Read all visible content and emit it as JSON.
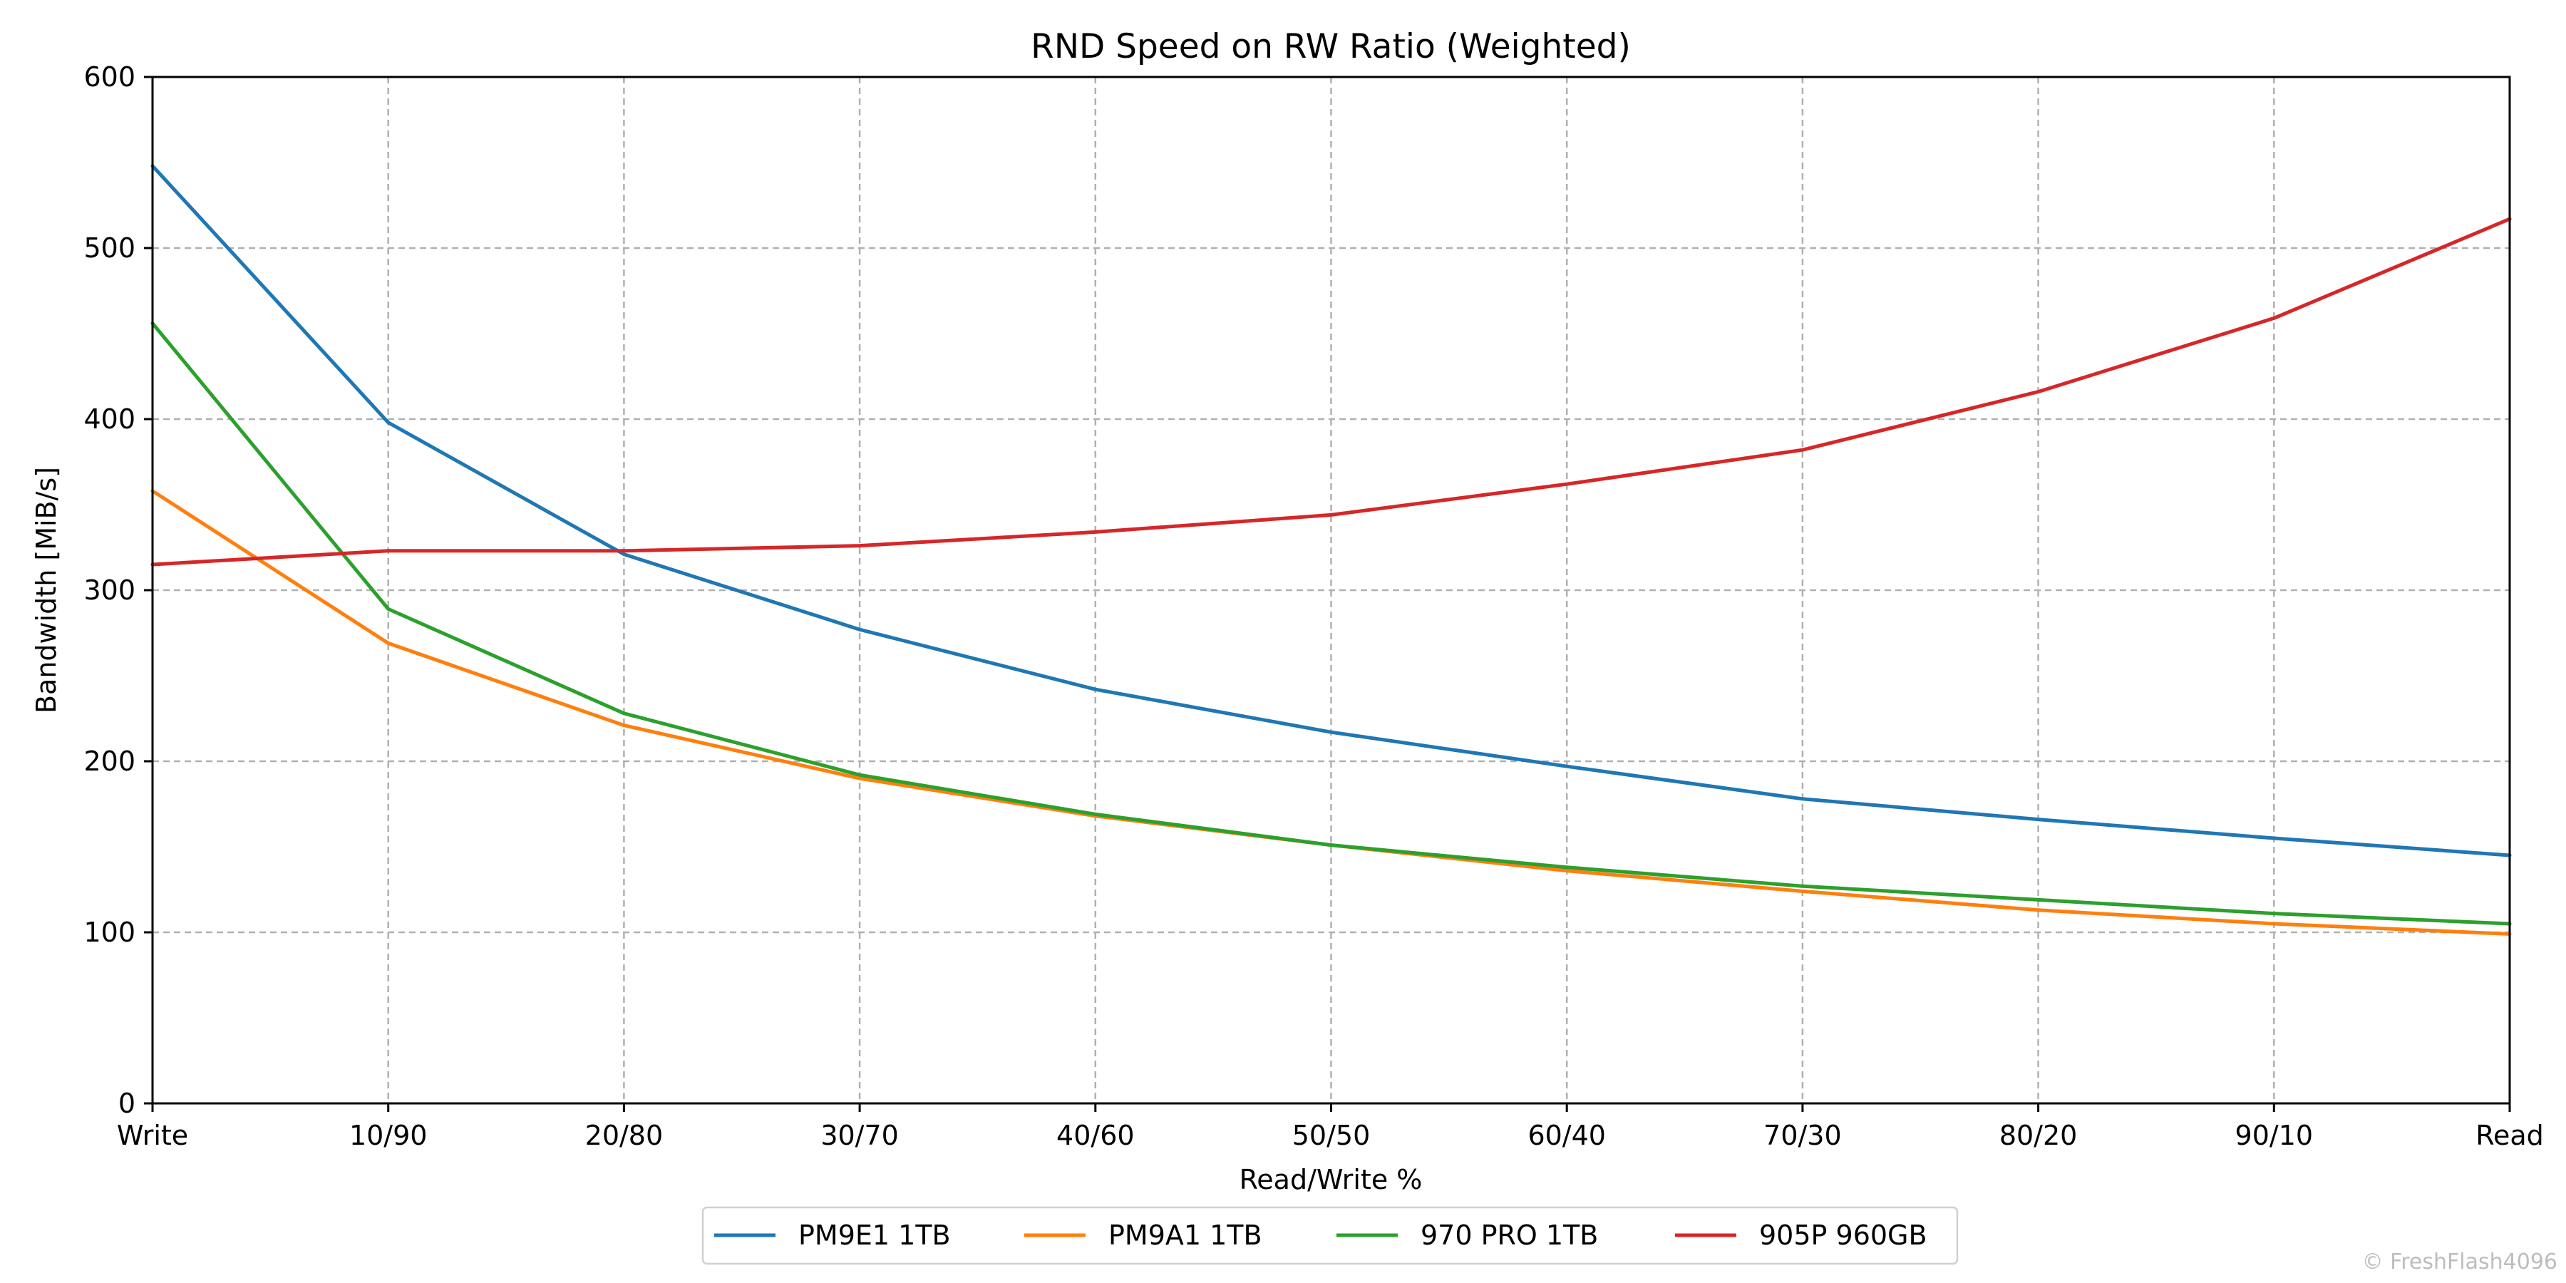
{
  "chart_data": {
    "type": "line",
    "title": "RND Speed on RW Ratio (Weighted)",
    "xlabel": "Read/Write %",
    "ylabel": "Bandwidth [MiB/s]",
    "categories": [
      "Write",
      "10/90",
      "20/80",
      "30/70",
      "40/60",
      "50/50",
      "60/40",
      "70/30",
      "80/20",
      "90/10",
      "Read"
    ],
    "ylim": [
      0,
      600
    ],
    "yticks": [
      0,
      100,
      200,
      300,
      400,
      500,
      600
    ],
    "grid": true,
    "legend_position": "bottom-center",
    "series": [
      {
        "name": "PM9E1 1TB",
        "color": "#1f77b4",
        "values": [
          548,
          398,
          321,
          277,
          242,
          217,
          197,
          178,
          166,
          155,
          145
        ]
      },
      {
        "name": "PM9A1 1TB",
        "color": "#ff7f0e",
        "values": [
          358,
          269,
          221,
          190,
          168,
          151,
          136,
          124,
          113,
          105,
          99
        ]
      },
      {
        "name": "970 PRO 1TB",
        "color": "#2ca02c",
        "values": [
          456,
          289,
          228,
          192,
          169,
          151,
          138,
          127,
          119,
          111,
          105
        ]
      },
      {
        "name": "905P 960GB",
        "color": "#d62728",
        "values": [
          315,
          323,
          323,
          326,
          334,
          344,
          362,
          382,
          416,
          459,
          517
        ]
      }
    ]
  },
  "watermark": "© FreshFlash4096"
}
